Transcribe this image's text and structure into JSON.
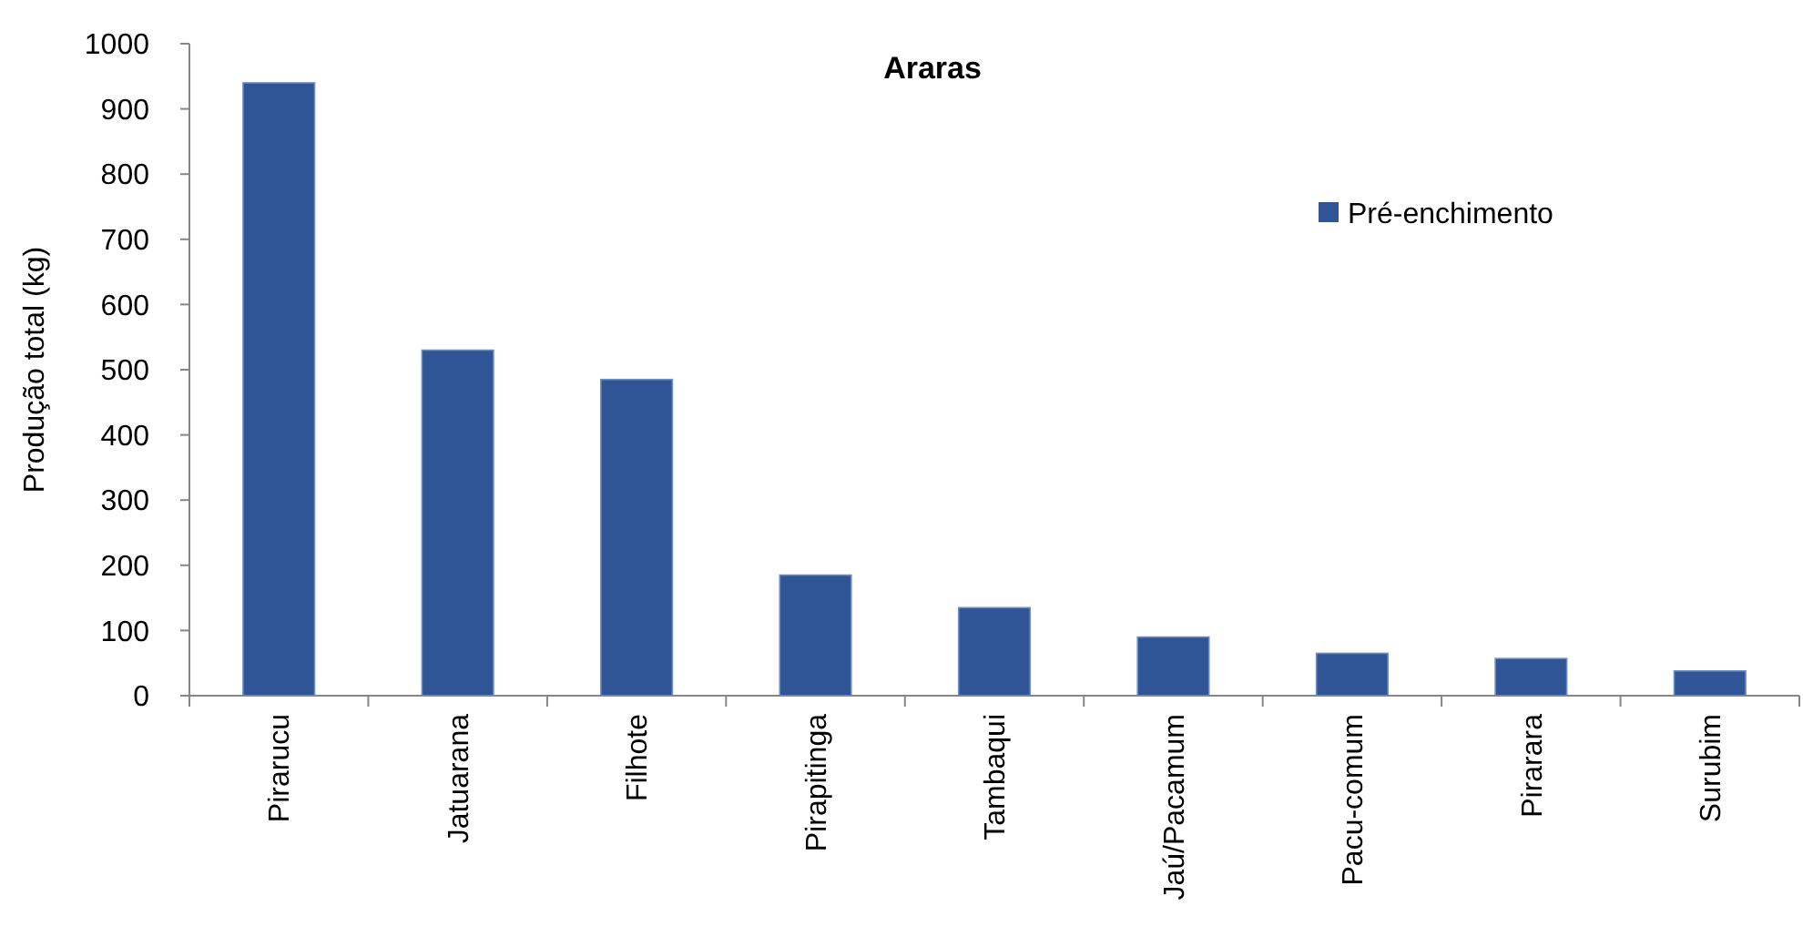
{
  "chart_data": {
    "type": "bar",
    "title": "Araras",
    "ylabel": "Produção total (kg)",
    "categories": [
      "Pirarucu",
      "Jatuarana",
      "Filhote",
      "Pirapitinga",
      "Tambaqui",
      "Jaú/Pacamum",
      "Pacu-comum",
      "Pirarara",
      "Surubim"
    ],
    "series": [
      {
        "name": "Pré-enchimento",
        "color": "#2f5597",
        "values": [
          940,
          530,
          485,
          185,
          135,
          90,
          65,
          57,
          38
        ]
      }
    ],
    "ylim": [
      0,
      1000
    ],
    "yticks": [
      0,
      100,
      200,
      300,
      400,
      500,
      600,
      700,
      800,
      900,
      1000
    ],
    "legend": "top right"
  }
}
